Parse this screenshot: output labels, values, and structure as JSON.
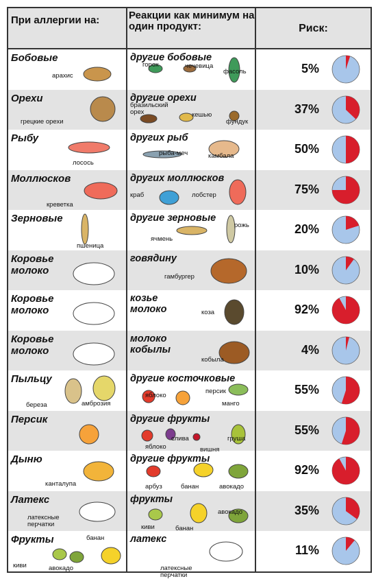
{
  "header": {
    "col1": "При аллергии на:",
    "col2": "Реакции как минимум на один продукт:",
    "col3": "Риск:"
  },
  "rows": [
    {
      "allergen": "Бобовые",
      "allergen_labels": [
        "арахис"
      ],
      "reaction": "другие бобовые",
      "reaction_labels": [
        "горох",
        "чечевица",
        "фасоль"
      ],
      "risk": "5%",
      "risk_value": 5
    },
    {
      "allergen": "Орехи",
      "allergen_labels": [
        "грецкие орехи"
      ],
      "reaction": "другие орехи",
      "reaction_labels": [
        "бразильский орех",
        "кешью",
        "фундук"
      ],
      "risk": "37%",
      "risk_value": 37
    },
    {
      "allergen": "Рыбу",
      "allergen_labels": [
        "лосось"
      ],
      "reaction": "других рыб",
      "reaction_labels": [
        "рыба-меч",
        "камбала"
      ],
      "risk": "50%",
      "risk_value": 50
    },
    {
      "allergen": "Моллюсков",
      "allergen_labels": [
        "креветка"
      ],
      "reaction": "других моллюсков",
      "reaction_labels": [
        "краб",
        "лобстер"
      ],
      "risk": "75%",
      "risk_value": 75
    },
    {
      "allergen": "Зерновые",
      "allergen_labels": [
        "пшеница"
      ],
      "reaction": "другие зерновые",
      "reaction_labels": [
        "ячмень",
        "рожь"
      ],
      "risk": "20%",
      "risk_value": 20
    },
    {
      "allergen": "Коровье молоко",
      "allergen_labels": [],
      "reaction": "говядину",
      "reaction_labels": [
        "гамбургер"
      ],
      "risk": "10%",
      "risk_value": 10
    },
    {
      "allergen": "Коровье молоко",
      "allergen_labels": [],
      "reaction": "козье молоко",
      "reaction_labels": [
        "коза"
      ],
      "risk": "92%",
      "risk_value": 92
    },
    {
      "allergen": "Коровье молоко",
      "allergen_labels": [],
      "reaction": "молоко кобылы",
      "reaction_labels": [
        "кобыла"
      ],
      "risk": "4%",
      "risk_value": 4
    },
    {
      "allergen": "Пыльцу",
      "allergen_labels": [
        "береза",
        "амброзия"
      ],
      "reaction": "другие косточковые",
      "reaction_labels": [
        "яблоко",
        "персик",
        "манго"
      ],
      "risk": "55%",
      "risk_value": 55
    },
    {
      "allergen": "Персик",
      "allergen_labels": [],
      "reaction": "другие фрукты",
      "reaction_labels": [
        "яблоко",
        "слива",
        "вишня",
        "груша"
      ],
      "risk": "55%",
      "risk_value": 55
    },
    {
      "allergen": "Дыню",
      "allergen_labels": [
        "канталупа"
      ],
      "reaction": "другие фрукты",
      "reaction_labels": [
        "арбуз",
        "банан",
        "авокадо"
      ],
      "risk": "92%",
      "risk_value": 92
    },
    {
      "allergen": "Латекс",
      "allergen_labels": [
        "латексные перчатки"
      ],
      "reaction": "фрукты",
      "reaction_labels": [
        "киви",
        "банан",
        "авокадо"
      ],
      "risk": "35%",
      "risk_value": 35
    },
    {
      "allergen": "Фрукты",
      "allergen_labels": [
        "банан",
        "киви",
        "авокадо"
      ],
      "reaction": "латекс",
      "reaction_labels": [
        "латексные перчатки"
      ],
      "risk": "11%",
      "risk_value": 11
    }
  ],
  "colors": {
    "risk": "#d81e2c",
    "safe": "#a8c6ea",
    "grey_row": "#e3e3e3"
  }
}
